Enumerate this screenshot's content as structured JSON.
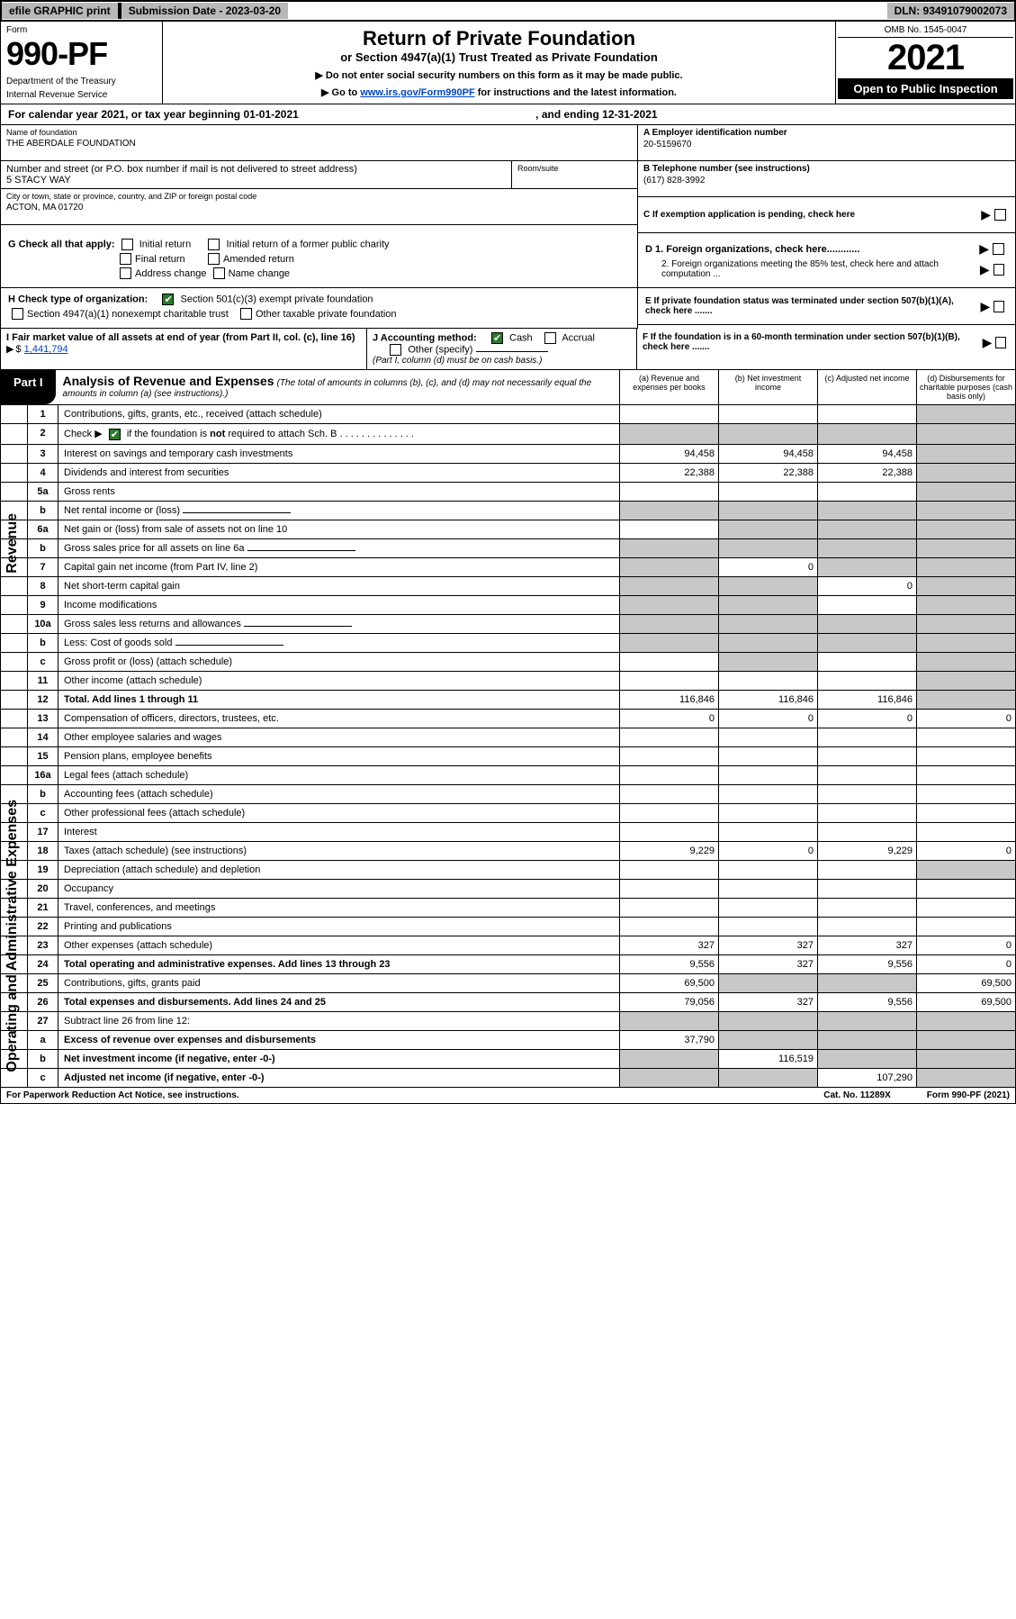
{
  "topbar": {
    "efile": "efile GRAPHIC print",
    "submission": "Submission Date - 2023-03-20",
    "dln": "DLN: 93491079002073"
  },
  "header": {
    "form_label": "Form",
    "form_number": "990-PF",
    "dept1": "Department of the Treasury",
    "dept2": "Internal Revenue Service",
    "title": "Return of Private Foundation",
    "subtitle": "or Section 4947(a)(1) Trust Treated as Private Foundation",
    "note1": "▶ Do not enter social security numbers on this form as it may be made public.",
    "note2_pre": "▶ Go to ",
    "note2_link": "www.irs.gov/Form990PF",
    "note2_post": " for instructions and the latest information.",
    "omb": "OMB No. 1545-0047",
    "year": "2021",
    "open": "Open to Public Inspection"
  },
  "calyear": {
    "text": "For calendar year 2021, or tax year beginning 01-01-2021",
    "ending": ", and ending 12-31-2021"
  },
  "info": {
    "name_label": "Name of foundation",
    "name_value": "THE ABERDALE FOUNDATION",
    "address_label": "Number and street (or P.O. box number if mail is not delivered to street address)",
    "address_value": "5 STACY WAY",
    "room_label": "Room/suite",
    "city_label": "City or town, state or province, country, and ZIP or foreign postal code",
    "city_value": "ACTON, MA  01720",
    "a_label": "A Employer identification number",
    "a_value": "20-5159670",
    "b_label": "B Telephone number (see instructions)",
    "b_value": "(617) 828-3992",
    "c_label": "C If exemption application is pending, check here"
  },
  "checks": {
    "g_label": "G Check all that apply:",
    "g_initial": "Initial return",
    "g_initial_former": "Initial return of a former public charity",
    "g_final": "Final return",
    "g_amended": "Amended return",
    "g_address": "Address change",
    "g_name": "Name change",
    "h_label": "H Check type of organization:",
    "h_501c3": "Section 501(c)(3) exempt private foundation",
    "h_4947": "Section 4947(a)(1) nonexempt charitable trust",
    "h_other": "Other taxable private foundation",
    "d1": "D 1. Foreign organizations, check here............",
    "d2": "2. Foreign organizations meeting the 85% test, check here and attach computation ...",
    "e_label": "E  If private foundation status was terminated under section 507(b)(1)(A), check here .......",
    "i_label": "I Fair market value of all assets at end of year (from Part II, col. (c), line 16)",
    "i_value": "1,441,794",
    "j_label": "J Accounting method:",
    "j_cash": "Cash",
    "j_accrual": "Accrual",
    "j_other": "Other (specify)",
    "j_note": "(Part I, column (d) must be on cash basis.)",
    "f_label": "F  If the foundation is in a 60-month termination under section 507(b)(1)(B), check here ......."
  },
  "part1": {
    "tab": "Part I",
    "title": "Analysis of Revenue and Expenses",
    "note": "(The total of amounts in columns (b), (c), and (d) may not necessarily equal the amounts in column (a) (see instructions).)",
    "col_a": "(a)   Revenue and expenses per books",
    "col_b": "(b)   Net investment income",
    "col_c": "(c)   Adjusted net income",
    "col_d": "(d)   Disbursements for charitable purposes (cash basis only)",
    "side_rev": "Revenue",
    "side_exp": "Operating and Administrative Expenses"
  },
  "rows": [
    {
      "n": "1",
      "d": "Contributions, gifts, grants, etc., received (attach schedule)",
      "a": "",
      "b": "",
      "c": "",
      "dd": "",
      "grey_d": true
    },
    {
      "n": "2",
      "d": "Check ▶ ☑ if the foundation is not required to attach Sch. B",
      "a": "",
      "b": "",
      "c": "",
      "dd": "",
      "grey_all": true
    },
    {
      "n": "3",
      "d": "Interest on savings and temporary cash investments",
      "a": "94,458",
      "b": "94,458",
      "c": "94,458",
      "dd": "",
      "grey_d": true
    },
    {
      "n": "4",
      "d": "Dividends and interest from securities",
      "a": "22,388",
      "b": "22,388",
      "c": "22,388",
      "dd": "",
      "grey_d": true
    },
    {
      "n": "5a",
      "d": "Gross rents",
      "a": "",
      "b": "",
      "c": "",
      "dd": "",
      "grey_d": true
    },
    {
      "n": "b",
      "d": "Net rental income or (loss)",
      "a": "",
      "b": "",
      "c": "",
      "dd": "",
      "grey_all": true,
      "subline": true
    },
    {
      "n": "6a",
      "d": "Net gain or (loss) from sale of assets not on line 10",
      "a": "",
      "b": "",
      "c": "",
      "dd": "",
      "grey_bcd": true
    },
    {
      "n": "b",
      "d": "Gross sales price for all assets on line 6a",
      "a": "",
      "b": "",
      "c": "",
      "dd": "",
      "grey_all": true,
      "subline": true
    },
    {
      "n": "7",
      "d": "Capital gain net income (from Part IV, line 2)",
      "a": "",
      "b": "0",
      "c": "",
      "dd": "",
      "grey_acd": true
    },
    {
      "n": "8",
      "d": "Net short-term capital gain",
      "a": "",
      "b": "",
      "c": "0",
      "dd": "",
      "grey_abd": true
    },
    {
      "n": "9",
      "d": "Income modifications",
      "a": "",
      "b": "",
      "c": "",
      "dd": "",
      "grey_abd": true
    },
    {
      "n": "10a",
      "d": "Gross sales less returns and allowances",
      "a": "",
      "b": "",
      "c": "",
      "dd": "",
      "grey_all": true,
      "subline": true
    },
    {
      "n": "b",
      "d": "Less: Cost of goods sold",
      "a": "",
      "b": "",
      "c": "",
      "dd": "",
      "grey_all": true,
      "subline": true
    },
    {
      "n": "c",
      "d": "Gross profit or (loss) (attach schedule)",
      "a": "",
      "b": "",
      "c": "",
      "dd": "",
      "grey_bd": true
    },
    {
      "n": "11",
      "d": "Other income (attach schedule)",
      "a": "",
      "b": "",
      "c": "",
      "dd": "",
      "grey_d": true
    },
    {
      "n": "12",
      "d": "Total. Add lines 1 through 11",
      "a": "116,846",
      "b": "116,846",
      "c": "116,846",
      "dd": "",
      "bold": true,
      "grey_d": true
    },
    {
      "n": "13",
      "d": "Compensation of officers, directors, trustees, etc.",
      "a": "0",
      "b": "0",
      "c": "0",
      "dd": "0"
    },
    {
      "n": "14",
      "d": "Other employee salaries and wages",
      "a": "",
      "b": "",
      "c": "",
      "dd": ""
    },
    {
      "n": "15",
      "d": "Pension plans, employee benefits",
      "a": "",
      "b": "",
      "c": "",
      "dd": ""
    },
    {
      "n": "16a",
      "d": "Legal fees (attach schedule)",
      "a": "",
      "b": "",
      "c": "",
      "dd": ""
    },
    {
      "n": "b",
      "d": "Accounting fees (attach schedule)",
      "a": "",
      "b": "",
      "c": "",
      "dd": ""
    },
    {
      "n": "c",
      "d": "Other professional fees (attach schedule)",
      "a": "",
      "b": "",
      "c": "",
      "dd": ""
    },
    {
      "n": "17",
      "d": "Interest",
      "a": "",
      "b": "",
      "c": "",
      "dd": ""
    },
    {
      "n": "18",
      "d": "Taxes (attach schedule) (see instructions)",
      "a": "9,229",
      "b": "0",
      "c": "9,229",
      "dd": "0"
    },
    {
      "n": "19",
      "d": "Depreciation (attach schedule) and depletion",
      "a": "",
      "b": "",
      "c": "",
      "dd": "",
      "grey_d": true
    },
    {
      "n": "20",
      "d": "Occupancy",
      "a": "",
      "b": "",
      "c": "",
      "dd": ""
    },
    {
      "n": "21",
      "d": "Travel, conferences, and meetings",
      "a": "",
      "b": "",
      "c": "",
      "dd": ""
    },
    {
      "n": "22",
      "d": "Printing and publications",
      "a": "",
      "b": "",
      "c": "",
      "dd": ""
    },
    {
      "n": "23",
      "d": "Other expenses (attach schedule)",
      "a": "327",
      "b": "327",
      "c": "327",
      "dd": "0"
    },
    {
      "n": "24",
      "d": "Total operating and administrative expenses. Add lines 13 through 23",
      "a": "9,556",
      "b": "327",
      "c": "9,556",
      "dd": "0",
      "bold": true
    },
    {
      "n": "25",
      "d": "Contributions, gifts, grants paid",
      "a": "69,500",
      "b": "",
      "c": "",
      "dd": "69,500",
      "grey_bc": true
    },
    {
      "n": "26",
      "d": "Total expenses and disbursements. Add lines 24 and 25",
      "a": "79,056",
      "b": "327",
      "c": "9,556",
      "dd": "69,500",
      "bold": true
    },
    {
      "n": "27",
      "d": "Subtract line 26 from line 12:",
      "a": "",
      "b": "",
      "c": "",
      "dd": "",
      "grey_all": true
    },
    {
      "n": "a",
      "d": "Excess of revenue over expenses and disbursements",
      "a": "37,790",
      "b": "",
      "c": "",
      "dd": "",
      "bold": true,
      "grey_bcd": true
    },
    {
      "n": "b",
      "d": "Net investment income (if negative, enter -0-)",
      "a": "",
      "b": "116,519",
      "c": "",
      "dd": "",
      "bold": true,
      "grey_acd": true
    },
    {
      "n": "c",
      "d": "Adjusted net income (if negative, enter -0-)",
      "a": "",
      "b": "",
      "c": "107,290",
      "dd": "",
      "bold": true,
      "grey_abd": true
    }
  ],
  "footer": {
    "left": "For Paperwork Reduction Act Notice, see instructions.",
    "mid": "Cat. No. 11289X",
    "right": "Form 990-PF (2021)"
  },
  "colors": {
    "grey": "#c8c8c8",
    "topgrey": "#b8b8b8",
    "link": "#0044cc",
    "check_green": "#2a7a2a"
  }
}
